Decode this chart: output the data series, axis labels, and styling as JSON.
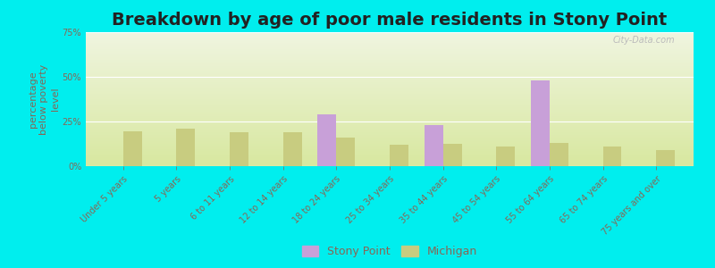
{
  "title": "Breakdown by age of poor male residents in Stony Point",
  "ylabel": "percentage\nbelow poverty\nlevel",
  "categories": [
    "Under 5 years",
    "5 years",
    "6 to 11 years",
    "12 to 14 years",
    "18 to 24 years",
    "25 to 34 years",
    "35 to 44 years",
    "45 to 54 years",
    "55 to 64 years",
    "65 to 74 years",
    "75 years and over"
  ],
  "stony_point": [
    0,
    0,
    0,
    0,
    29.0,
    0,
    23.0,
    0,
    48.0,
    0,
    0
  ],
  "michigan": [
    19.5,
    21.0,
    19.0,
    19.0,
    16.0,
    12.0,
    12.5,
    11.0,
    13.0,
    11.0,
    9.0
  ],
  "stony_point_color": "#c8a0d8",
  "michigan_color": "#c8cc80",
  "bg_color_top": "#f0f5e0",
  "bg_color_bottom": "#e8f0c8",
  "outer_bg": "#00eeee",
  "ylim": [
    0,
    75
  ],
  "yticks": [
    0,
    25,
    50,
    75
  ],
  "ytick_labels": [
    "0%",
    "25%",
    "50%",
    "75%"
  ],
  "bar_width": 0.35,
  "title_fontsize": 14,
  "axis_label_fontsize": 8,
  "tick_fontsize": 7,
  "legend_fontsize": 9,
  "tick_color": "#886655",
  "title_color": "#222222"
}
